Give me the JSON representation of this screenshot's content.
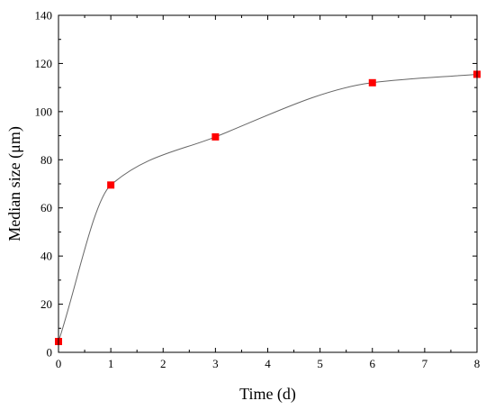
{
  "chart_data": {
    "type": "scatter",
    "title": "",
    "xlabel": "Time (d)",
    "ylabel": "Median size (μm)",
    "xlim": [
      0,
      8
    ],
    "ylim": [
      0,
      140
    ],
    "xticks": [
      0,
      1,
      2,
      3,
      4,
      5,
      6,
      7,
      8
    ],
    "yticks": [
      0,
      20,
      40,
      60,
      80,
      100,
      120,
      140
    ],
    "grid": false,
    "legend": "none",
    "series": [
      {
        "x": [
          0,
          1,
          3,
          6,
          8
        ],
        "y": [
          4.5,
          69.5,
          89.5,
          112,
          115.5
        ],
        "marker": "square",
        "marker_color": "#ff0000",
        "line": "smooth",
        "line_color": "#666666"
      }
    ]
  }
}
